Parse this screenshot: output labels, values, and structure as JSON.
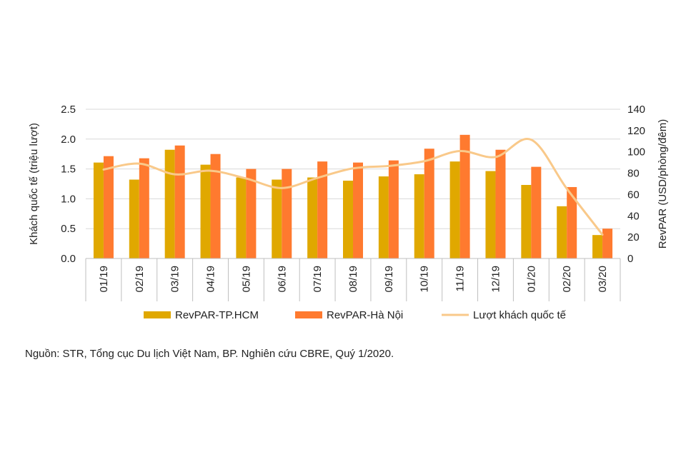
{
  "chart_data": {
    "type": "bar",
    "categories": [
      "01/19",
      "02/19",
      "03/19",
      "04/19",
      "05/19",
      "06/19",
      "07/19",
      "08/19",
      "09/19",
      "10/19",
      "11/19",
      "12/19",
      "01/20",
      "02/20",
      "03/20"
    ],
    "series": [
      {
        "name": "RevPAR-TP.HCM",
        "type": "bar",
        "axis": "right",
        "color": "#E0A800",
        "values": [
          90,
          74,
          102,
          88,
          76,
          74,
          76,
          73,
          77,
          79,
          91,
          82,
          69,
          49,
          22
        ]
      },
      {
        "name": "RevPAR-Hà Nội",
        "type": "bar",
        "axis": "right",
        "color": "#FF7A2F",
        "values": [
          96,
          94,
          106,
          98,
          84,
          84,
          91,
          90,
          92,
          103,
          116,
          102,
          86,
          67,
          28
        ]
      },
      {
        "name": "Lượt khách quốc tế",
        "type": "line",
        "axis": "left",
        "color": "#F9C98A",
        "values": [
          1.49,
          1.59,
          1.41,
          1.47,
          1.34,
          1.18,
          1.35,
          1.51,
          1.55,
          1.63,
          1.8,
          1.7,
          1.99,
          1.17,
          0.4
        ]
      }
    ],
    "y_left": {
      "label": "Khách quốc tế (triệu lượt)",
      "ylim": [
        0,
        2.5
      ],
      "ticks": [
        "0.0",
        "0.5",
        "1.0",
        "1.5",
        "2.0",
        "2.5"
      ]
    },
    "y_right": {
      "label": "RevPAR (USD/phòng/đêm)",
      "ylim": [
        0,
        140
      ],
      "ticks": [
        "0",
        "20",
        "40",
        "60",
        "80",
        "100",
        "120",
        "140"
      ]
    },
    "grid": true,
    "legend": "bottom"
  },
  "source_note": "Nguồn: STR, Tổng cục Du lịch Việt Nam, BP. Nghiên cứu CBRE, Quý 1/2020."
}
